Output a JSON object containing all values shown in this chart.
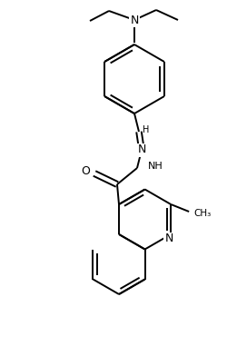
{
  "bg_color": "#ffffff",
  "line_color": "#000000",
  "line_width": 1.4,
  "font_size": 8,
  "figsize": [
    2.51,
    3.92
  ],
  "dpi": 100,
  "xlim": [
    0,
    251
  ],
  "ylim": [
    0,
    392
  ]
}
